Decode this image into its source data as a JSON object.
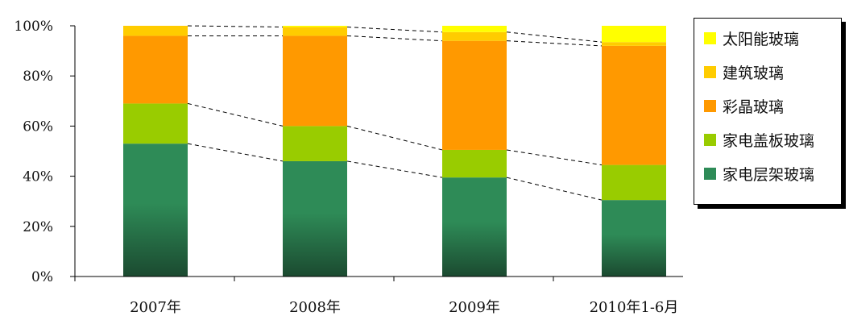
{
  "chart_data": {
    "type": "bar",
    "stacked": true,
    "percent": true,
    "categories": [
      "2007年",
      "2008年",
      "2009年",
      "2010年1-6月"
    ],
    "y_ticks": [
      "0%",
      "20%",
      "40%",
      "60%",
      "80%",
      "100%"
    ],
    "ylim": [
      0,
      100
    ],
    "grid": false,
    "legend_position": "right",
    "series_connectors": "dashed",
    "series": [
      {
        "name": "家电层架玻璃",
        "color": "#2e8b57",
        "color_dark": "#1b4a30",
        "values": [
          53,
          46,
          39.5,
          30.5
        ]
      },
      {
        "name": "家电盖板玻璃",
        "color": "#99cc00",
        "values": [
          16,
          14,
          11,
          14
        ]
      },
      {
        "name": "彩晶玻璃",
        "color": "#ff9900",
        "values": [
          27,
          36,
          43.5,
          47.5
        ]
      },
      {
        "name": "建筑玻璃",
        "color": "#ffcc00",
        "values": [
          4,
          3.5,
          3.5,
          1.5
        ]
      },
      {
        "name": "太阳能玻璃",
        "color": "#ffff00",
        "values": [
          0,
          0.5,
          2.5,
          6.5
        ]
      }
    ]
  }
}
